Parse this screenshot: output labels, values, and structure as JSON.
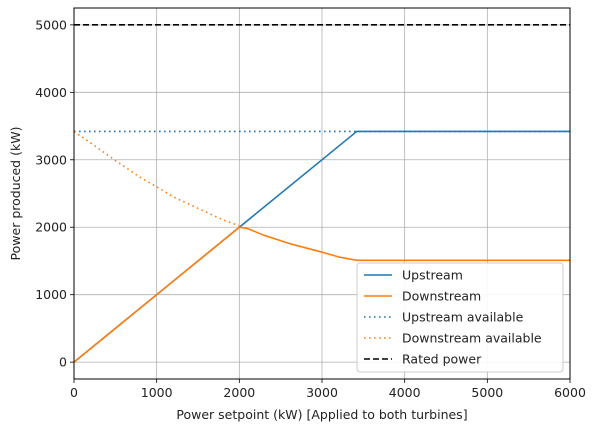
{
  "chart_data": {
    "type": "line",
    "xlabel": "Power setpoint (kW) [Applied to both turbines]",
    "ylabel": "Power produced (kW)",
    "xlim": [
      0,
      6000
    ],
    "ylim": [
      -250,
      5250
    ],
    "xticks": [
      0,
      1000,
      2000,
      3000,
      4000,
      5000,
      6000
    ],
    "yticks": [
      0,
      1000,
      2000,
      3000,
      4000,
      5000
    ],
    "grid": true,
    "legend_position": "bottom-right",
    "colors": {
      "upstream": "#1f77b4",
      "downstream": "#ff7f0e",
      "rated": "#000000"
    },
    "series": [
      {
        "name": "Upstream",
        "style": "solid",
        "color": "#1f77b4",
        "points": [
          [
            0,
            0
          ],
          [
            2000,
            2000
          ],
          [
            3420,
            3420
          ],
          [
            6000,
            3420
          ]
        ]
      },
      {
        "name": "Downstream",
        "style": "solid",
        "color": "#ff7f0e",
        "points": [
          [
            0,
            0
          ],
          [
            2000,
            2000
          ],
          [
            2100,
            1980
          ],
          [
            2300,
            1880
          ],
          [
            2600,
            1760
          ],
          [
            3000,
            1630
          ],
          [
            3200,
            1560
          ],
          [
            3420,
            1510
          ],
          [
            6000,
            1510
          ]
        ]
      },
      {
        "name": "Upstream available",
        "style": "dotted",
        "color": "#1f77b4",
        "points": [
          [
            0,
            3420
          ],
          [
            6000,
            3420
          ]
        ]
      },
      {
        "name": "Downstream available",
        "style": "dotted",
        "color": "#ff7f0e",
        "points": [
          [
            0,
            3420
          ],
          [
            200,
            3250
          ],
          [
            500,
            2990
          ],
          [
            800,
            2740
          ],
          [
            1000,
            2600
          ],
          [
            1200,
            2450
          ],
          [
            1500,
            2280
          ],
          [
            1800,
            2110
          ],
          [
            2000,
            2020
          ]
        ]
      },
      {
        "name": "Rated power",
        "style": "dashed",
        "color": "#000000",
        "points": [
          [
            0,
            5000
          ],
          [
            6000,
            5000
          ]
        ]
      }
    ]
  }
}
